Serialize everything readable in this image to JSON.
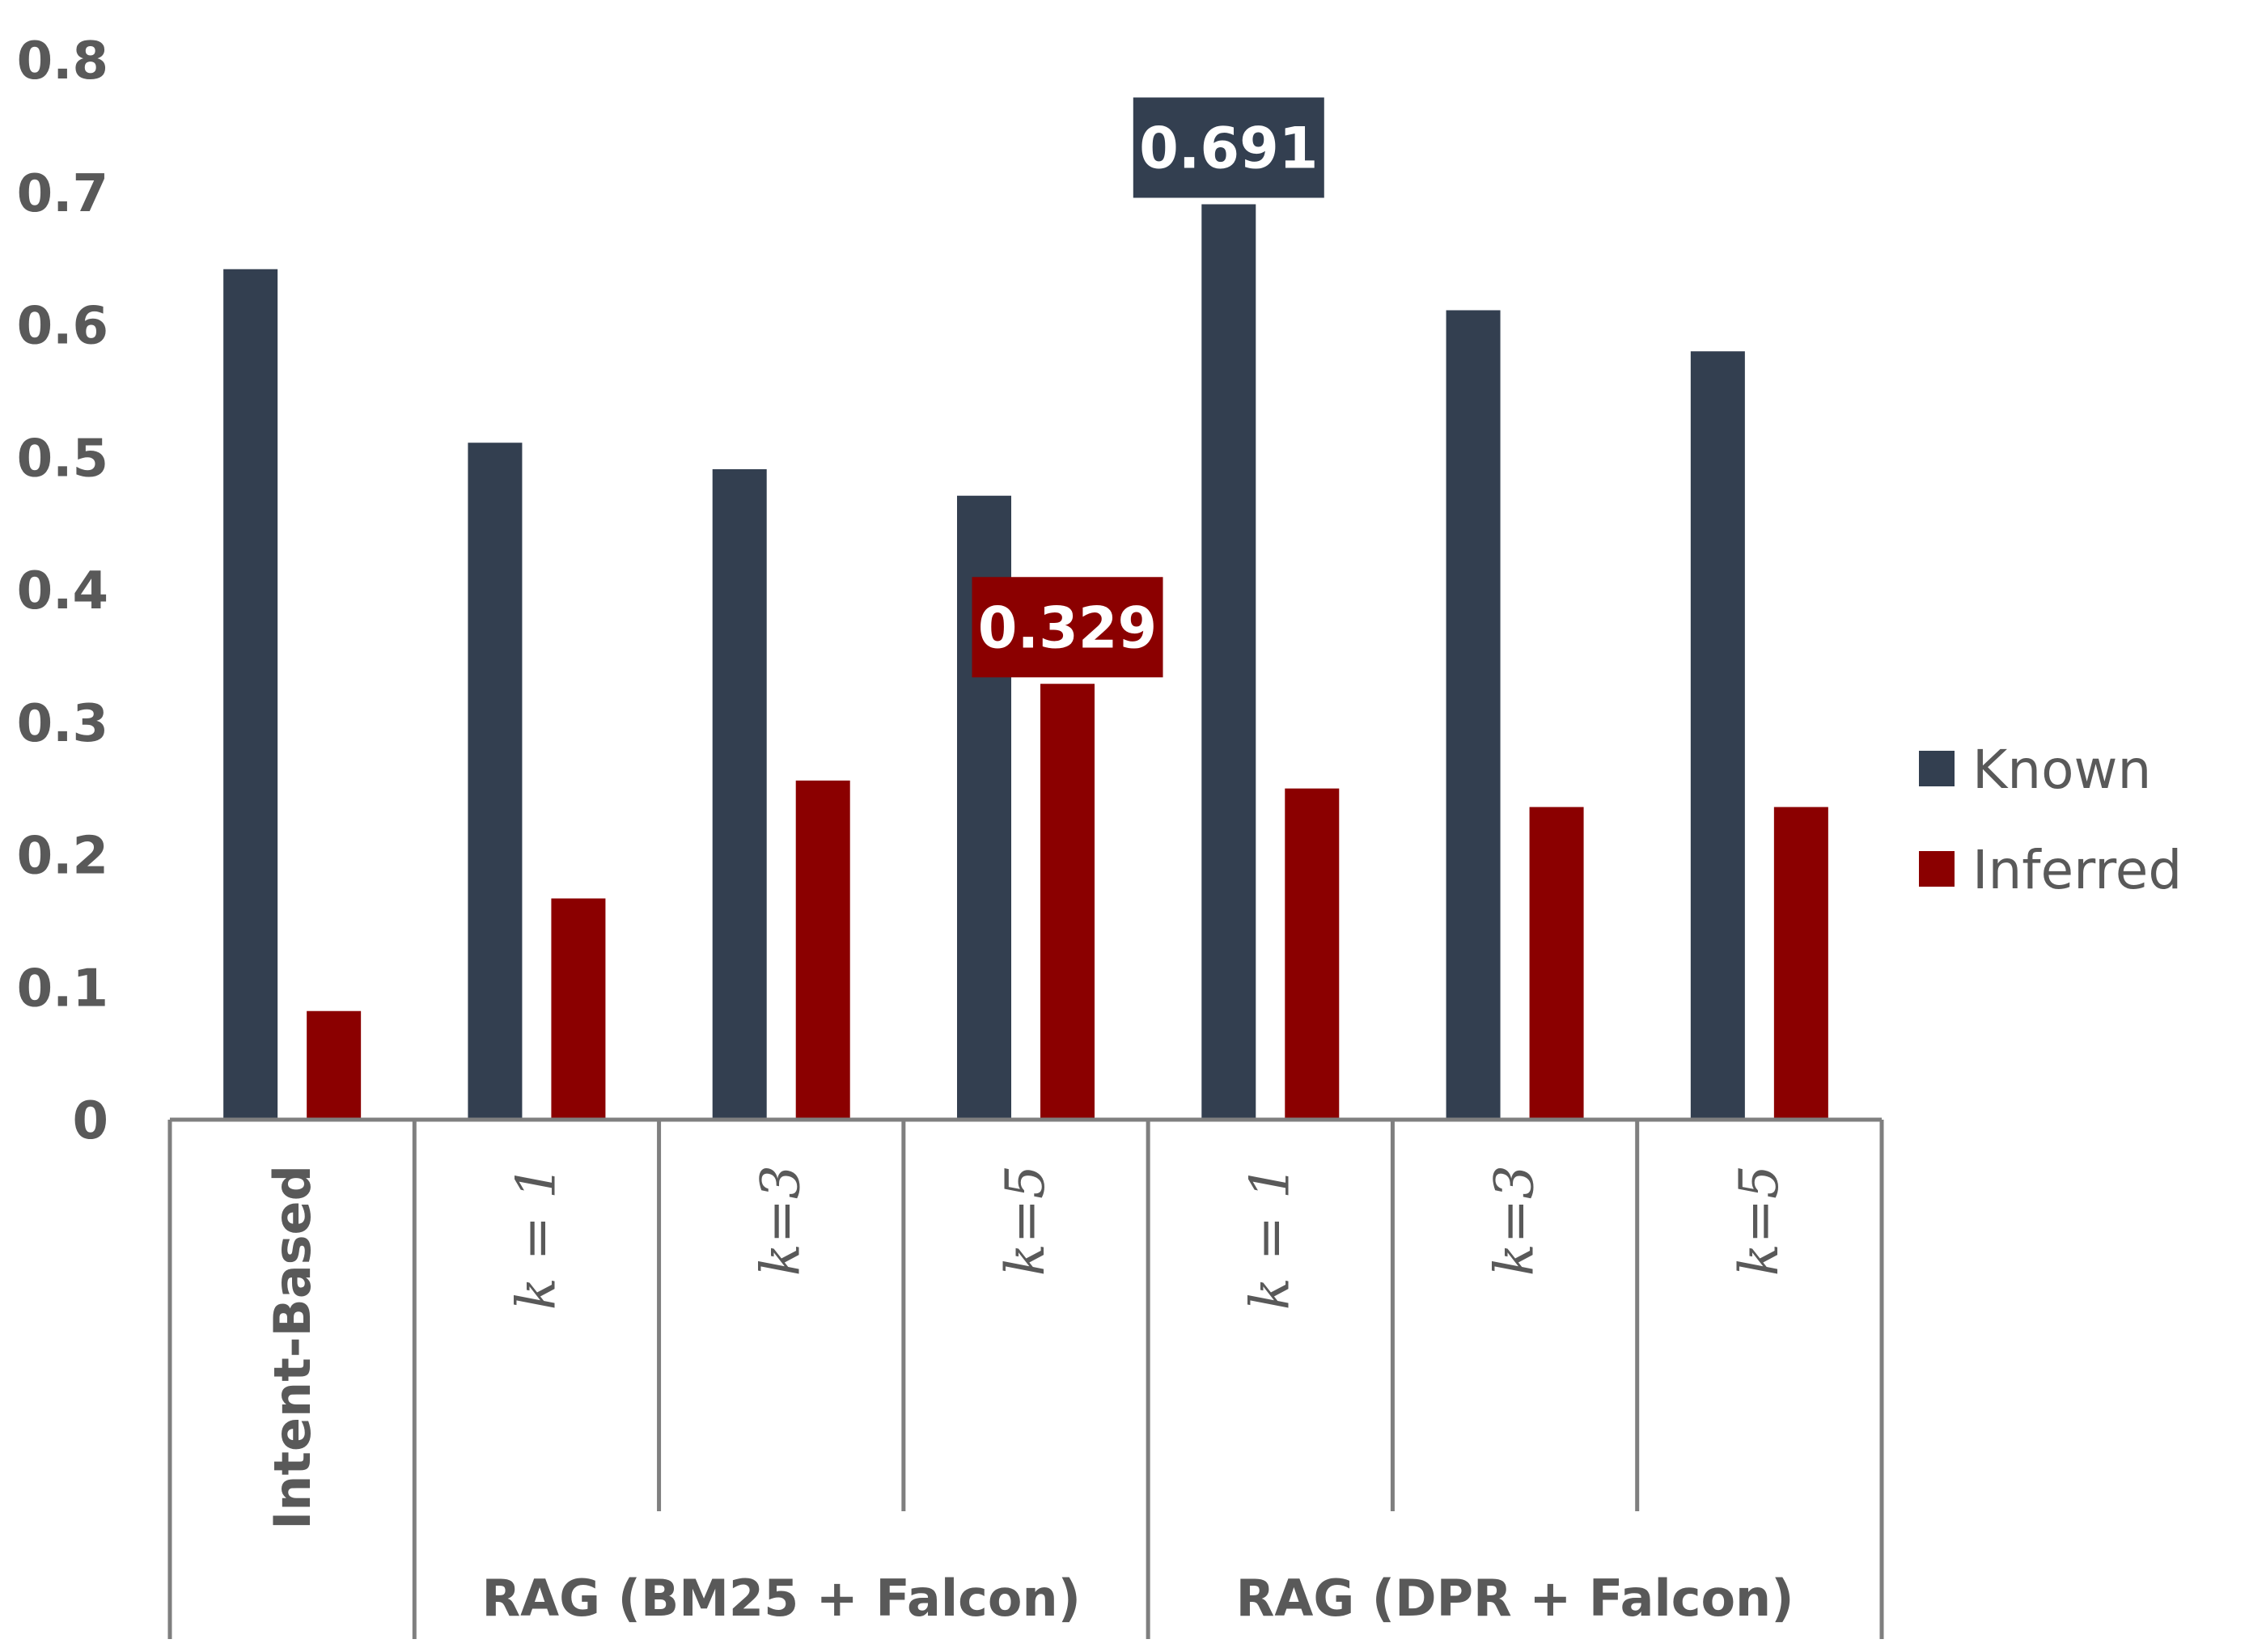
{
  "chart_data": {
    "type": "bar",
    "categories": [
      "Intent-Based",
      "k = 1",
      "k=3",
      "k=5",
      "k = 1",
      "k=3",
      "k=5"
    ],
    "groups": [
      {
        "label": "",
        "categories": [
          0
        ]
      },
      {
        "label": "RAG (BM25 + Falcon)",
        "categories": [
          1,
          2,
          3
        ]
      },
      {
        "label": "RAG (DPR + Falcon)",
        "categories": [
          4,
          5,
          6
        ]
      }
    ],
    "series": [
      {
        "name": "Known",
        "color": "#333f50",
        "values": [
          0.642,
          0.511,
          0.491,
          0.471,
          0.691,
          0.611,
          0.58
        ]
      },
      {
        "name": "Inferred",
        "color": "#8b0000",
        "values": [
          0.082,
          0.167,
          0.256,
          0.329,
          0.25,
          0.236,
          0.236
        ]
      }
    ],
    "data_labels": [
      {
        "series": 0,
        "category": 4,
        "text": "0.691"
      },
      {
        "series": 1,
        "category": 3,
        "text": "0.329"
      }
    ],
    "yticks": [
      "0",
      "0.1",
      "0.2",
      "0.3",
      "0.4",
      "0.5",
      "0.6",
      "0.7",
      "0.8"
    ],
    "ylim": [
      0,
      0.8
    ],
    "grid": false,
    "legend_position": "right",
    "title": "",
    "xlabel": "",
    "ylabel": ""
  }
}
